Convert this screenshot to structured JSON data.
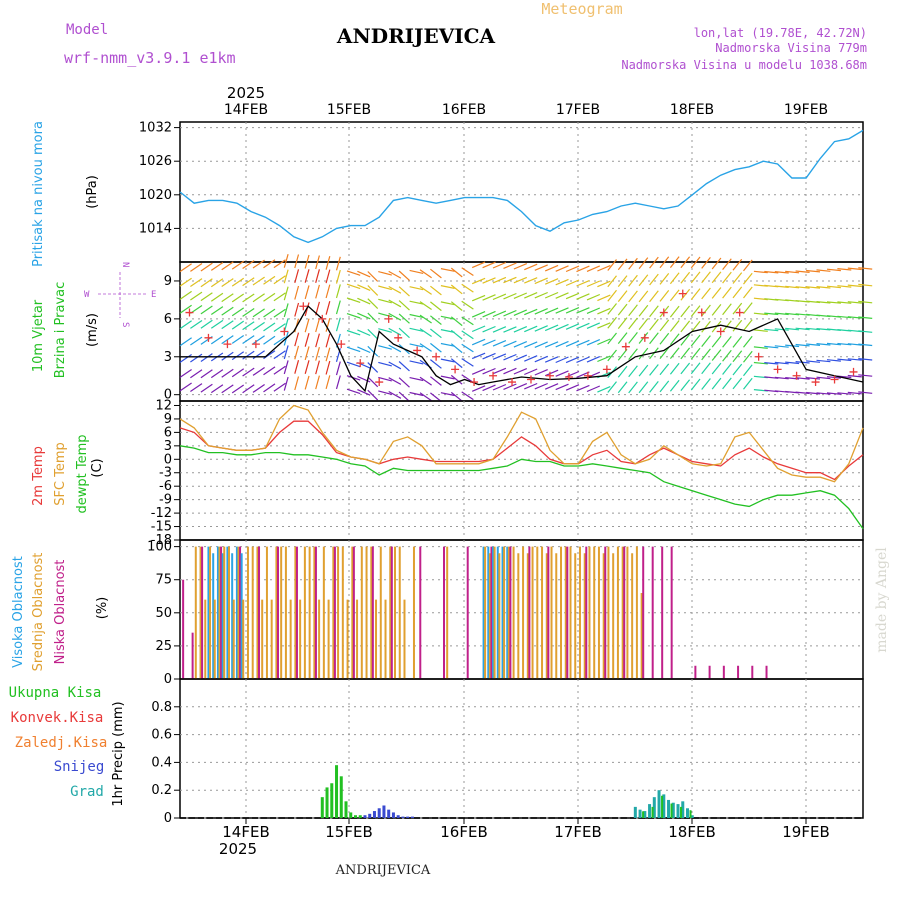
{
  "header": {
    "model_label": "Model",
    "model_name": "wrf-nmm_v3.9.1 e1km",
    "station": "ANDRIJEVICA",
    "product": "Meteogram",
    "lonlat": "lon,lat (19.78E, 42.72N)",
    "elevation": "Nadmorska Visina 779m",
    "model_elevation": "Nadmorska Visina u modelu 1038.68m",
    "footer_station": "ANDRIJEVICA",
    "credit": "made by Angel"
  },
  "axis_time": {
    "year": "2025",
    "labels": [
      "14FEB",
      "15FEB",
      "16FEB",
      "17FEB",
      "18FEB",
      "19FEB"
    ]
  },
  "colors": {
    "pressure": "#29a3e6",
    "wind_speed_line": "#000000",
    "gust_marks": "#e83a3a",
    "temp_2m": "#e83a3a",
    "temp_sfc": "#e0a030",
    "dewpoint": "#22c022",
    "cloud_high": "#29a3e6",
    "cloud_mid": "#e0a030",
    "cloud_low": "#c0208a",
    "precip_total": "#22c022",
    "precip_snow": "#3a4ad0",
    "precip_grad": "#22a8a8",
    "title_purple": "#b050d0",
    "product_orange": "#f0c070"
  },
  "chart_data": [
    {
      "id": "pressure",
      "type": "line",
      "title": "",
      "ylabel_lines": [
        "Pritisak na nivou mora",
        "(hPa)"
      ],
      "ylim": [
        1008,
        1033
      ],
      "yticks": [
        1014,
        1020,
        1026,
        1032
      ],
      "x_hours": [
        0,
        3,
        6,
        9,
        12,
        15,
        18,
        21,
        24,
        27,
        30,
        33,
        36,
        39,
        42,
        45,
        48,
        51,
        54,
        57,
        60,
        63,
        66,
        69,
        72,
        75,
        78,
        81,
        84,
        87,
        90,
        93,
        96,
        99,
        102,
        105,
        108,
        111,
        114,
        117,
        120,
        123,
        126,
        129,
        132,
        135,
        138,
        141,
        144
      ],
      "values": [
        1020.5,
        1018.5,
        1019,
        1019,
        1018.5,
        1017,
        1016,
        1014.5,
        1012.5,
        1011.5,
        1012.5,
        1014,
        1014.5,
        1014.5,
        1016,
        1019,
        1019.5,
        1019,
        1018.5,
        1019,
        1019.5,
        1019.5,
        1019.5,
        1019,
        1017,
        1014.5,
        1013.5,
        1015,
        1015.5,
        1016.5,
        1017,
        1018,
        1018.5,
        1018,
        1017.5,
        1018,
        1020,
        1022,
        1023.5,
        1024.5,
        1025,
        1026,
        1025.5,
        1023,
        1023,
        1026.5,
        1029.5,
        1030,
        1031.5
      ]
    },
    {
      "id": "wind",
      "type": "line",
      "title": "",
      "ylabel_lines": [
        "10m Vjetar",
        "Brzina i Pravac",
        "(m/s)"
      ],
      "compass": [
        "N",
        "W",
        "E",
        "S"
      ],
      "ylim": [
        -0.5,
        10.5
      ],
      "yticks": [
        0,
        3,
        6,
        9
      ],
      "x_hours": [
        0,
        6,
        12,
        18,
        24,
        27,
        30,
        33,
        36,
        39,
        42,
        45,
        48,
        51,
        54,
        57,
        60,
        63,
        66,
        72,
        78,
        84,
        90,
        96,
        102,
        108,
        114,
        120,
        126,
        132,
        138,
        144
      ],
      "speed": [
        3,
        3,
        3,
        3,
        5,
        7,
        6,
        4,
        1.5,
        0.3,
        5,
        4,
        3.5,
        3,
        1.5,
        0.8,
        1.2,
        0.8,
        1,
        1.4,
        1.2,
        1.3,
        1.5,
        3,
        3.5,
        5,
        5.5,
        5,
        6,
        2,
        1.5,
        1
      ],
      "gust_x_hours": [
        2,
        6,
        10,
        16,
        22,
        26,
        30,
        34,
        38,
        42,
        44,
        46,
        50,
        54,
        58,
        62,
        66,
        70,
        74,
        78,
        82,
        86,
        90,
        94,
        98,
        102,
        106,
        110,
        114,
        118,
        122,
        126,
        130,
        134,
        138,
        142
      ],
      "gust_values": [
        6.5,
        4.5,
        4,
        4,
        5,
        7,
        6,
        4,
        2.5,
        1,
        6,
        4.5,
        3.5,
        3,
        2,
        1,
        1.5,
        1,
        1.2,
        1.5,
        1.4,
        1.5,
        2,
        3.8,
        4.5,
        6.5,
        8,
        6.5,
        5,
        6.5,
        3,
        2,
        1.5,
        1,
        1.2,
        1.8
      ],
      "barb_note": "Wind barbs drawn from model wind direction field"
    },
    {
      "id": "temperature",
      "type": "line",
      "title": "",
      "ylabel_lines": [
        "2m Temp",
        "SFC Temp",
        "dewpt Temp",
        "(C)"
      ],
      "ylim": [
        -18,
        13
      ],
      "yticks": [
        12,
        9,
        6,
        3,
        0,
        -3,
        -6,
        -9,
        -12,
        -15,
        -18
      ],
      "x_hours": [
        0,
        3,
        6,
        9,
        12,
        15,
        18,
        21,
        24,
        27,
        30,
        33,
        36,
        39,
        42,
        45,
        48,
        51,
        54,
        57,
        60,
        63,
        66,
        69,
        72,
        75,
        78,
        81,
        84,
        87,
        90,
        93,
        96,
        99,
        102,
        105,
        108,
        111,
        114,
        117,
        120,
        123,
        126,
        129,
        132,
        135,
        138,
        141,
        144
      ],
      "series": [
        {
          "name": "2m Temp",
          "values": [
            7,
            6,
            3,
            2.5,
            2,
            2,
            2.5,
            6,
            8.5,
            8.5,
            5.5,
            1.5,
            0.5,
            0,
            -1,
            0,
            0.5,
            0,
            -0.5,
            -0.5,
            -0.5,
            -0.5,
            0,
            2.5,
            5,
            3,
            0,
            -1,
            -1,
            1,
            2,
            -0.5,
            -1,
            1,
            2.5,
            1,
            -0.5,
            -1,
            -1.5,
            1,
            2.5,
            0.5,
            -1,
            -2,
            -3,
            -3,
            -4.5,
            -1.5,
            1
          ]
        },
        {
          "name": "SFC Temp",
          "values": [
            9,
            7,
            3,
            2.5,
            2,
            2,
            2.5,
            9,
            12,
            11,
            6,
            2,
            0.5,
            0,
            -1,
            4,
            5,
            3,
            -1,
            -1,
            -1,
            -1,
            0,
            5,
            10.5,
            9,
            2,
            -1,
            -1,
            4,
            6,
            1,
            -1,
            0,
            3,
            1,
            -1,
            -1.5,
            -1,
            5,
            6,
            2,
            -2,
            -3.5,
            -4,
            -4,
            -5,
            -1,
            7
          ]
        },
        {
          "name": "dewpt Temp",
          "values": [
            3,
            2.5,
            1.5,
            1.5,
            1,
            1,
            1.5,
            1.5,
            1,
            1,
            0.5,
            0,
            -1,
            -1.5,
            -3.5,
            -2,
            -2.5,
            -2.5,
            -2.5,
            -2.5,
            -2.5,
            -2.5,
            -2,
            -1.5,
            0,
            -0.5,
            -0.5,
            -1.5,
            -1.5,
            -1,
            -1.5,
            -2,
            -2.5,
            -3,
            -5,
            -6,
            -7,
            -8,
            -9,
            -10,
            -10.5,
            -9,
            -8,
            -8,
            -7.5,
            -7,
            -8,
            -11,
            -15.5
          ]
        }
      ]
    },
    {
      "id": "clouds",
      "type": "bar",
      "title": "",
      "ylabel_lines": [
        "Visoka Oblacnost",
        "Srednja Oblacnost",
        "Niska Oblacnost",
        "(%)"
      ],
      "ylim": [
        0,
        105
      ],
      "yticks": [
        0,
        25,
        50,
        75,
        100
      ],
      "note": "hourly cloud fraction bars; high (blue), mid (orange), low (magenta)"
    },
    {
      "id": "precip",
      "type": "bar",
      "title": "",
      "ylabel_lines": [
        "1hr Precip (mm)"
      ],
      "legend": [
        "Ukupna Kisa",
        "Konvek.Kisa",
        "Zaledj.Kisa",
        "Snijeg",
        "Grad"
      ],
      "legend_colors": [
        "#22c022",
        "#e83a3a",
        "#f08030",
        "#3a4ad0",
        "#22a8a8"
      ],
      "ylim": [
        0,
        1.0
      ],
      "yticks": [
        0,
        0.2,
        0.4,
        0.6,
        0.8
      ],
      "rain_x_hours": [
        30,
        31,
        32,
        33,
        34,
        35,
        36,
        37,
        38
      ],
      "rain_values": [
        0.15,
        0.22,
        0.25,
        0.38,
        0.3,
        0.12,
        0.04,
        0.02,
        0.02
      ],
      "snow_x_hours": [
        39,
        40,
        41,
        42,
        43,
        44,
        45,
        46,
        47,
        48,
        49
      ],
      "snow_values": [
        0.02,
        0.03,
        0.05,
        0.07,
        0.09,
        0.06,
        0.04,
        0.02,
        0.01,
        0.01,
        0.01
      ],
      "late_x_hours": [
        96,
        97,
        98,
        99,
        100,
        101,
        102,
        103,
        104,
        105,
        106,
        107,
        108
      ],
      "late_values": [
        0.08,
        0.06,
        0.05,
        0.1,
        0.15,
        0.2,
        0.17,
        0.13,
        0.11,
        0.1,
        0.12,
        0.07,
        0.02
      ]
    }
  ]
}
